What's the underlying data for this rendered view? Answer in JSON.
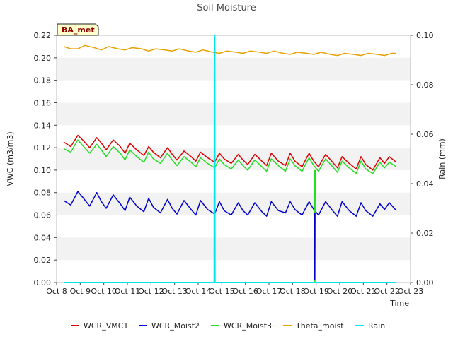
{
  "chart_data": {
    "type": "line",
    "title": "Soil Moisture",
    "badge": "BA_met",
    "xlabel": "Time",
    "ylabel": "VWC (m3/m3)",
    "y2label": "Rain (mm)",
    "ylim": [
      0.0,
      0.22
    ],
    "y2lim": [
      0.0,
      0.1
    ],
    "xlim": [
      8,
      23
    ],
    "x_unit": "day of October",
    "x_ticks": [
      8,
      9,
      10,
      11,
      12,
      13,
      14,
      15,
      16,
      17,
      18,
      19,
      20,
      21,
      22,
      23
    ],
    "x_tick_labels": [
      "Oct 8",
      "Oct 9",
      "Oct 10",
      "Oct 11",
      "Oct 12",
      "Oct 13",
      "Oct 14",
      "Oct 15",
      "Oct 16",
      "Oct 17",
      "Oct 18",
      "Oct 19",
      "Oct 20",
      "Oct 21",
      "Oct 22",
      "Oct 23"
    ],
    "y_ticks": [
      0.0,
      0.02,
      0.04,
      0.06,
      0.08,
      0.1,
      0.12,
      0.14,
      0.16,
      0.18,
      0.2,
      0.22
    ],
    "y_tick_labels": [
      "0.00",
      "0.02",
      "0.04",
      "0.06",
      "0.08",
      "0.10",
      "0.12",
      "0.14",
      "0.16",
      "0.18",
      "0.20",
      "0.22"
    ],
    "y2_ticks": [
      0.0,
      0.02,
      0.04,
      0.06,
      0.08,
      0.1
    ],
    "y2_tick_labels": [
      "0.00",
      "0.02",
      "0.04",
      "0.06",
      "0.08",
      "0.10"
    ],
    "grid": "horizontal bands",
    "legend_position": "bottom",
    "series": [
      {
        "name": "WCR_VMC1",
        "color": "#dd0000",
        "axis": "left",
        "x": [
          8.3,
          8.6,
          8.9,
          9.1,
          9.4,
          9.7,
          9.9,
          10.1,
          10.4,
          10.7,
          10.9,
          11.1,
          11.4,
          11.7,
          11.9,
          12.1,
          12.4,
          12.7,
          12.9,
          13.1,
          13.4,
          13.7,
          13.9,
          14.1,
          14.4,
          14.7,
          14.9,
          15.1,
          15.4,
          15.7,
          15.9,
          16.1,
          16.4,
          16.7,
          16.9,
          17.1,
          17.4,
          17.7,
          17.9,
          18.1,
          18.4,
          18.7,
          18.9,
          19.1,
          19.4,
          19.7,
          19.9,
          20.1,
          20.4,
          20.7,
          20.9,
          21.1,
          21.4,
          21.7,
          21.9,
          22.1,
          22.4
        ],
        "y": [
          0.125,
          0.121,
          0.131,
          0.127,
          0.12,
          0.129,
          0.124,
          0.118,
          0.127,
          0.121,
          0.115,
          0.124,
          0.118,
          0.113,
          0.121,
          0.116,
          0.111,
          0.12,
          0.114,
          0.109,
          0.117,
          0.112,
          0.108,
          0.116,
          0.111,
          0.107,
          0.115,
          0.11,
          0.106,
          0.114,
          0.109,
          0.105,
          0.114,
          0.108,
          0.104,
          0.115,
          0.108,
          0.104,
          0.115,
          0.108,
          0.103,
          0.115,
          0.108,
          0.103,
          0.114,
          0.107,
          0.102,
          0.112,
          0.106,
          0.101,
          0.112,
          0.105,
          0.1,
          0.111,
          0.106,
          0.112,
          0.107
        ]
      },
      {
        "name": "WCR_Moist2",
        "color": "#0000cc",
        "axis": "left",
        "x": [
          8.3,
          8.6,
          8.9,
          9.1,
          9.4,
          9.7,
          9.9,
          10.1,
          10.4,
          10.7,
          10.9,
          11.1,
          11.4,
          11.7,
          11.9,
          12.1,
          12.4,
          12.7,
          12.9,
          13.1,
          13.4,
          13.7,
          13.9,
          14.1,
          14.4,
          14.7,
          14.9,
          15.1,
          15.4,
          15.7,
          15.9,
          16.1,
          16.4,
          16.7,
          16.9,
          17.1,
          17.4,
          17.7,
          17.9,
          18.1,
          18.4,
          18.7,
          18.9,
          19.1,
          19.4,
          19.7,
          19.9,
          20.1,
          20.4,
          20.7,
          20.9,
          21.1,
          21.4,
          21.7,
          21.9,
          22.1,
          22.4
        ],
        "y": [
          0.073,
          0.069,
          0.081,
          0.076,
          0.068,
          0.08,
          0.072,
          0.066,
          0.078,
          0.07,
          0.064,
          0.076,
          0.068,
          0.063,
          0.075,
          0.067,
          0.062,
          0.074,
          0.066,
          0.061,
          0.073,
          0.065,
          0.06,
          0.073,
          0.065,
          0.061,
          0.072,
          0.064,
          0.06,
          0.071,
          0.064,
          0.06,
          0.071,
          0.063,
          0.059,
          0.072,
          0.064,
          0.062,
          0.072,
          0.065,
          0.06,
          0.072,
          0.065,
          0.06,
          0.072,
          0.064,
          0.059,
          0.072,
          0.064,
          0.059,
          0.071,
          0.064,
          0.059,
          0.07,
          0.065,
          0.071,
          0.064
        ]
      },
      {
        "name": "WCR_Moist3",
        "color": "#22dd22",
        "axis": "left",
        "x": [
          8.3,
          8.6,
          8.9,
          9.1,
          9.4,
          9.7,
          9.9,
          10.1,
          10.4,
          10.7,
          10.9,
          11.1,
          11.4,
          11.7,
          11.9,
          12.1,
          12.4,
          12.7,
          12.9,
          13.1,
          13.4,
          13.7,
          13.9,
          14.1,
          14.4,
          14.7,
          14.9,
          15.1,
          15.4,
          15.7,
          15.9,
          16.1,
          16.4,
          16.7,
          16.9,
          17.1,
          17.4,
          17.7,
          17.9,
          18.1,
          18.4,
          18.7,
          18.9,
          19.1,
          19.4,
          19.7,
          19.9,
          20.1,
          20.4,
          20.7,
          20.9,
          21.1,
          21.4,
          21.7,
          21.9,
          22.1,
          22.4
        ],
        "y": [
          0.119,
          0.116,
          0.127,
          0.122,
          0.115,
          0.123,
          0.118,
          0.112,
          0.121,
          0.115,
          0.109,
          0.118,
          0.112,
          0.107,
          0.116,
          0.11,
          0.106,
          0.115,
          0.109,
          0.104,
          0.112,
          0.107,
          0.103,
          0.111,
          0.106,
          0.102,
          0.11,
          0.105,
          0.101,
          0.109,
          0.104,
          0.1,
          0.109,
          0.103,
          0.099,
          0.11,
          0.104,
          0.099,
          0.11,
          0.104,
          0.099,
          0.111,
          0.104,
          0.099,
          0.11,
          0.103,
          0.098,
          0.108,
          0.102,
          0.097,
          0.108,
          0.101,
          0.097,
          0.107,
          0.102,
          0.107,
          0.103
        ]
      },
      {
        "name": "Theta_moist",
        "color": "#e8a000",
        "axis": "left",
        "x": [
          8.3,
          8.6,
          8.9,
          9.2,
          9.6,
          9.9,
          10.2,
          10.6,
          10.9,
          11.2,
          11.6,
          11.9,
          12.2,
          12.6,
          12.9,
          13.2,
          13.6,
          13.9,
          14.2,
          14.6,
          14.9,
          15.2,
          15.6,
          15.9,
          16.2,
          16.6,
          16.9,
          17.2,
          17.6,
          17.9,
          18.2,
          18.6,
          18.9,
          19.2,
          19.6,
          19.9,
          20.2,
          20.6,
          20.9,
          21.2,
          21.6,
          21.9,
          22.2,
          22.4
        ],
        "y": [
          0.21,
          0.208,
          0.208,
          0.211,
          0.209,
          0.207,
          0.21,
          0.208,
          0.207,
          0.209,
          0.208,
          0.206,
          0.208,
          0.207,
          0.206,
          0.208,
          0.206,
          0.205,
          0.207,
          0.205,
          0.204,
          0.206,
          0.205,
          0.204,
          0.206,
          0.205,
          0.204,
          0.206,
          0.204,
          0.203,
          0.205,
          0.204,
          0.203,
          0.205,
          0.203,
          0.202,
          0.204,
          0.203,
          0.202,
          0.204,
          0.203,
          0.202,
          0.204,
          0.204
        ]
      },
      {
        "name": "Rain",
        "color": "#00e5ee",
        "axis": "right",
        "x": [
          8.3,
          14.68,
          14.69,
          14.7,
          14.71,
          14.72,
          22.4
        ],
        "y": [
          0.0,
          0.0,
          0.1,
          0.1,
          0.0,
          0.0,
          0.0
        ]
      }
    ],
    "annotations": [
      {
        "series": "WCR_Moist3",
        "note": "drop",
        "x": [
          18.93,
          18.94,
          18.95,
          18.96
        ],
        "y": [
          0.1,
          0.001,
          0.001,
          0.1
        ]
      },
      {
        "series": "WCR_Moist2",
        "note": "drop",
        "x": [
          18.93,
          18.94,
          18.95
        ],
        "y": [
          0.062,
          0.002,
          0.062
        ]
      }
    ]
  }
}
